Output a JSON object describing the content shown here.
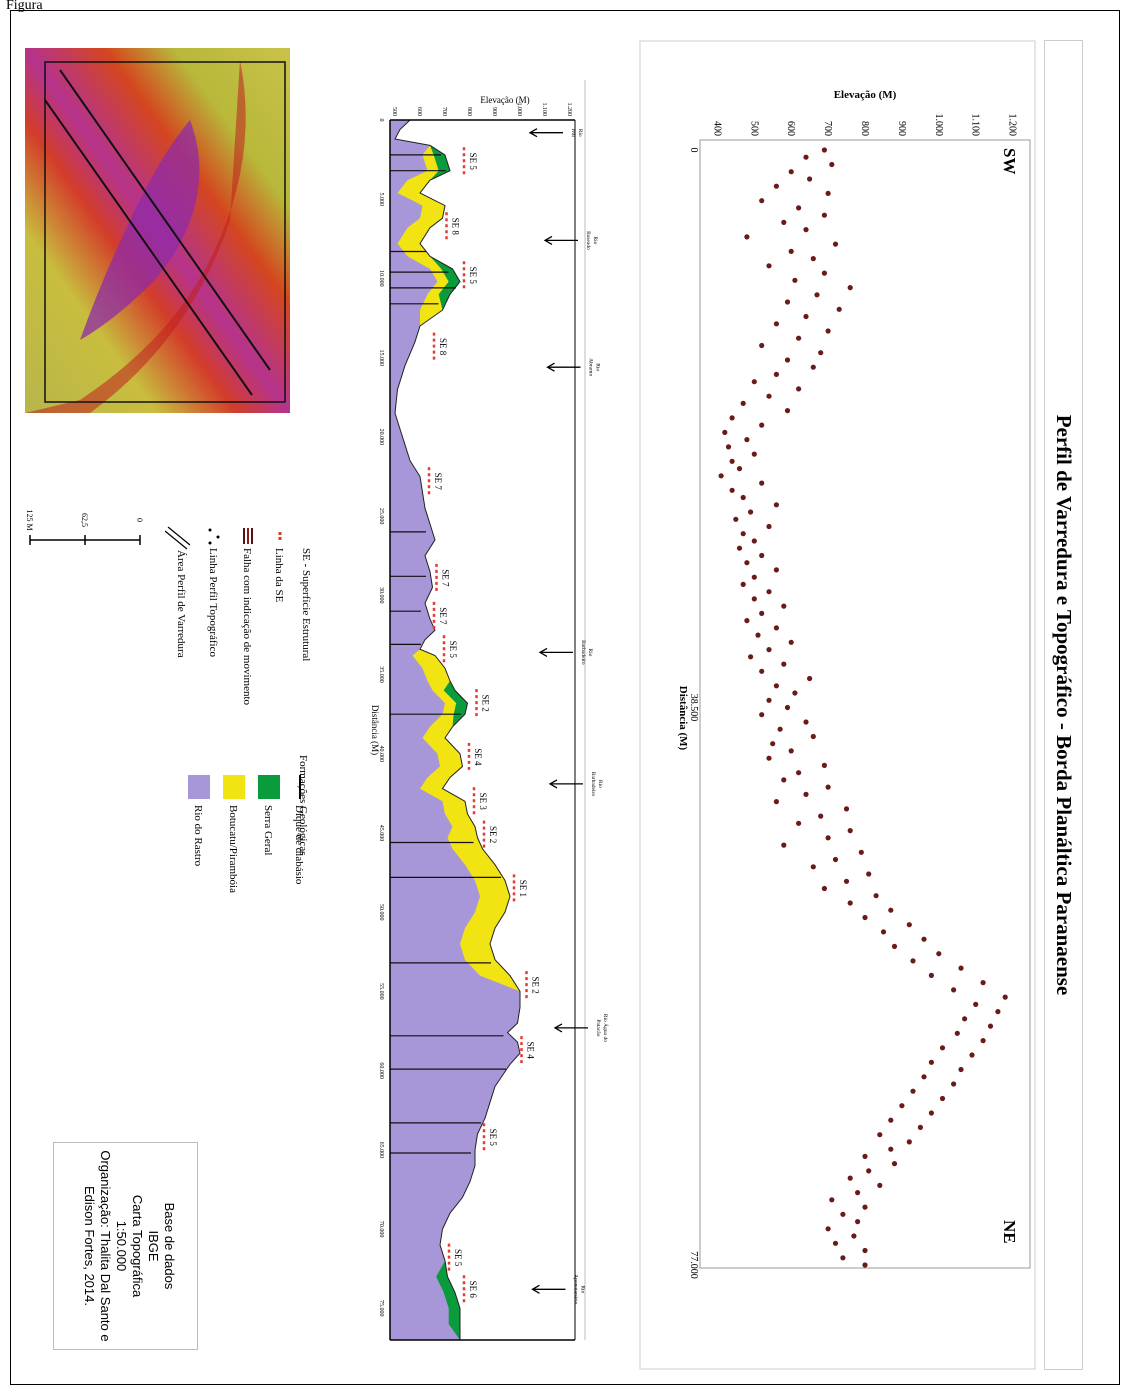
{
  "figure_label": "Figura",
  "title": "Perfil de Varredura e Topográfico - Borda Planáltica Paranaense",
  "colors": {
    "dot": "#6b1a1a",
    "serra_geral": "#0a9b3c",
    "botucatu": "#f2e313",
    "rio_rastro": "#a897d8",
    "se_line": "#e53935"
  },
  "scan_profile": {
    "direction_left": "SW",
    "direction_right": "NE",
    "ylabel": "Elevação (M)",
    "xlabel": "Distância (M)",
    "y_ticks": [
      "1.200",
      "1.100",
      "1.000",
      "900",
      "800",
      "700",
      "600",
      "500",
      "400"
    ],
    "x_ticks": [
      "0",
      "38.500",
      "77.000"
    ]
  },
  "chart_data": {
    "type": "scatter",
    "xlabel": "Distância (M)",
    "ylabel": "Elevação (M)",
    "xlim": [
      0,
      77000
    ],
    "ylim": [
      380,
      1220
    ],
    "points": [
      [
        0,
        690
      ],
      [
        500,
        640
      ],
      [
        1000,
        710
      ],
      [
        1500,
        600
      ],
      [
        2000,
        650
      ],
      [
        2500,
        560
      ],
      [
        3000,
        700
      ],
      [
        3500,
        520
      ],
      [
        4000,
        620
      ],
      [
        4500,
        690
      ],
      [
        5000,
        580
      ],
      [
        5500,
        640
      ],
      [
        6000,
        480
      ],
      [
        6500,
        720
      ],
      [
        7000,
        600
      ],
      [
        7500,
        660
      ],
      [
        8000,
        540
      ],
      [
        8500,
        690
      ],
      [
        9000,
        610
      ],
      [
        9500,
        760
      ],
      [
        10000,
        670
      ],
      [
        10500,
        590
      ],
      [
        11000,
        730
      ],
      [
        11500,
        640
      ],
      [
        12000,
        560
      ],
      [
        12500,
        700
      ],
      [
        13000,
        620
      ],
      [
        13500,
        520
      ],
      [
        14000,
        680
      ],
      [
        14500,
        590
      ],
      [
        15000,
        660
      ],
      [
        15500,
        560
      ],
      [
        16000,
        500
      ],
      [
        16500,
        620
      ],
      [
        17000,
        540
      ],
      [
        17500,
        470
      ],
      [
        18000,
        590
      ],
      [
        18500,
        440
      ],
      [
        19000,
        520
      ],
      [
        19500,
        420
      ],
      [
        20000,
        480
      ],
      [
        20500,
        430
      ],
      [
        21000,
        500
      ],
      [
        21500,
        440
      ],
      [
        22000,
        460
      ],
      [
        22500,
        410
      ],
      [
        23000,
        520
      ],
      [
        23500,
        440
      ],
      [
        24000,
        470
      ],
      [
        24500,
        560
      ],
      [
        25000,
        490
      ],
      [
        25500,
        450
      ],
      [
        26000,
        540
      ],
      [
        26500,
        470
      ],
      [
        27000,
        500
      ],
      [
        27500,
        460
      ],
      [
        28000,
        520
      ],
      [
        28500,
        480
      ],
      [
        29000,
        560
      ],
      [
        29500,
        500
      ],
      [
        30000,
        470
      ],
      [
        30500,
        540
      ],
      [
        31000,
        500
      ],
      [
        31500,
        580
      ],
      [
        32000,
        520
      ],
      [
        32500,
        480
      ],
      [
        33000,
        560
      ],
      [
        33500,
        510
      ],
      [
        34000,
        600
      ],
      [
        34500,
        540
      ],
      [
        35000,
        490
      ],
      [
        35500,
        580
      ],
      [
        36000,
        520
      ],
      [
        36500,
        650
      ],
      [
        37000,
        560
      ],
      [
        37500,
        610
      ],
      [
        38000,
        540
      ],
      [
        38500,
        590
      ],
      [
        39000,
        520
      ],
      [
        39500,
        640
      ],
      [
        40000,
        570
      ],
      [
        40500,
        660
      ],
      [
        41000,
        550
      ],
      [
        41500,
        600
      ],
      [
        42000,
        540
      ],
      [
        42500,
        690
      ],
      [
        43000,
        620
      ],
      [
        43500,
        580
      ],
      [
        44000,
        700
      ],
      [
        44500,
        640
      ],
      [
        45000,
        560
      ],
      [
        45500,
        750
      ],
      [
        46000,
        680
      ],
      [
        46500,
        620
      ],
      [
        47000,
        760
      ],
      [
        47500,
        700
      ],
      [
        48000,
        580
      ],
      [
        48500,
        790
      ],
      [
        49000,
        720
      ],
      [
        49500,
        660
      ],
      [
        50000,
        810
      ],
      [
        50500,
        750
      ],
      [
        51000,
        690
      ],
      [
        51500,
        830
      ],
      [
        52000,
        760
      ],
      [
        52500,
        870
      ],
      [
        53000,
        800
      ],
      [
        53500,
        920
      ],
      [
        54000,
        850
      ],
      [
        54500,
        960
      ],
      [
        55000,
        880
      ],
      [
        55500,
        1000
      ],
      [
        56000,
        930
      ],
      [
        56500,
        1060
      ],
      [
        57000,
        980
      ],
      [
        57500,
        1120
      ],
      [
        58000,
        1040
      ],
      [
        58500,
        1180
      ],
      [
        59000,
        1100
      ],
      [
        59500,
        1160
      ],
      [
        60000,
        1070
      ],
      [
        60500,
        1140
      ],
      [
        61000,
        1050
      ],
      [
        61500,
        1120
      ],
      [
        62000,
        1010
      ],
      [
        62500,
        1090
      ],
      [
        63000,
        980
      ],
      [
        63500,
        1060
      ],
      [
        64000,
        960
      ],
      [
        64500,
        1040
      ],
      [
        65000,
        930
      ],
      [
        65500,
        1010
      ],
      [
        66000,
        900
      ],
      [
        66500,
        980
      ],
      [
        67000,
        870
      ],
      [
        67500,
        950
      ],
      [
        68000,
        840
      ],
      [
        68500,
        920
      ],
      [
        69000,
        870
      ],
      [
        69500,
        800
      ],
      [
        70000,
        880
      ],
      [
        70500,
        810
      ],
      [
        71000,
        760
      ],
      [
        71500,
        840
      ],
      [
        72000,
        780
      ],
      [
        72500,
        710
      ],
      [
        73000,
        800
      ],
      [
        73500,
        740
      ],
      [
        74000,
        780
      ],
      [
        74500,
        700
      ],
      [
        75000,
        770
      ],
      [
        75500,
        720
      ],
      [
        76000,
        800
      ],
      [
        76500,
        740
      ],
      [
        77000,
        800
      ]
    ]
  },
  "topo_profile": {
    "ylabel": "Elevação (M)",
    "xlabel": "Distância (M)",
    "y_ticks": [
      "1.200",
      "1.100",
      "1.000",
      "900",
      "800",
      "700",
      "600",
      "500"
    ],
    "x_ticks": [
      "0",
      "5.000",
      "10.000",
      "15.000",
      "20.000",
      "25.000",
      "30.000",
      "35.000",
      "40.000",
      "45.000",
      "50.000",
      "55.000",
      "60.000",
      "65.000",
      "70.000",
      "75.000"
    ],
    "surface_labels": [
      {
        "t": "SE 5",
        "d": 2600,
        "z": 760
      },
      {
        "t": "SE 8",
        "d": 6700,
        "z": 690
      },
      {
        "t": "SE 5",
        "d": 9800,
        "z": 760
      },
      {
        "t": "SE 8",
        "d": 14300,
        "z": 640
      },
      {
        "t": "SE 7",
        "d": 22800,
        "z": 620
      },
      {
        "t": "SE 7",
        "d": 28900,
        "z": 650
      },
      {
        "t": "SE 7",
        "d": 31300,
        "z": 640
      },
      {
        "t": "SE 5",
        "d": 33400,
        "z": 680
      },
      {
        "t": "SE 2",
        "d": 36800,
        "z": 810
      },
      {
        "t": "SE 4",
        "d": 40200,
        "z": 780
      },
      {
        "t": "SE 3",
        "d": 43000,
        "z": 800
      },
      {
        "t": "SE 2",
        "d": 45100,
        "z": 840
      },
      {
        "t": "SE 1",
        "d": 48500,
        "z": 960
      },
      {
        "t": "SE 2",
        "d": 54600,
        "z": 1010
      },
      {
        "t": "SE 4",
        "d": 58700,
        "z": 990
      },
      {
        "t": "SE 5",
        "d": 64200,
        "z": 840
      },
      {
        "t": "SE 5",
        "d": 71800,
        "z": 700
      },
      {
        "t": "SE 6",
        "d": 73800,
        "z": 760
      }
    ],
    "rivers": [
      {
        "t": "Rio\nIvaí",
        "d": 800,
        "z": 1100
      },
      {
        "t": "Rio\nBaseado",
        "d": 7600,
        "z": 1160
      },
      {
        "t": "Rio\nAbramo",
        "d": 15600,
        "z": 1170
      },
      {
        "t": "Rio\nBarbadeiro",
        "d": 33600,
        "z": 1140
      },
      {
        "t": "Rio\nBarbadeiro",
        "d": 41900,
        "z": 1180
      },
      {
        "t": "Rio Água do\nPatacão",
        "d": 57300,
        "z": 1200
      },
      {
        "t": "Rio\nAponutenário",
        "d": 73800,
        "z": 1110
      }
    ]
  },
  "legend_left": {
    "se_title": "SE - Superfície Estrutural",
    "se_line": "Linha da SE",
    "fault": "Falha com indicação de movimento",
    "topo_line": "Linha Perfil Topográfico",
    "scan_area": "Área Perfil de Varredura",
    "scale_ticks": [
      "0",
      "62,5",
      "125 M"
    ]
  },
  "legend_right": {
    "title": "Formações Geológicas",
    "dike": "Dique de diabásio",
    "serra_geral": "Serra Geral",
    "botucatu": "Botucatu/Pirambóia",
    "rio_rastro": "Rio do Rastro"
  },
  "info_box": {
    "line1": "Base de dados",
    "line2": "IBGE",
    "line3": "Carta Topográfica",
    "line4": "1:50.000",
    "line5": "Organização: Thalita Dal Santo e",
    "line6": "Edison Fortes, 2014."
  }
}
